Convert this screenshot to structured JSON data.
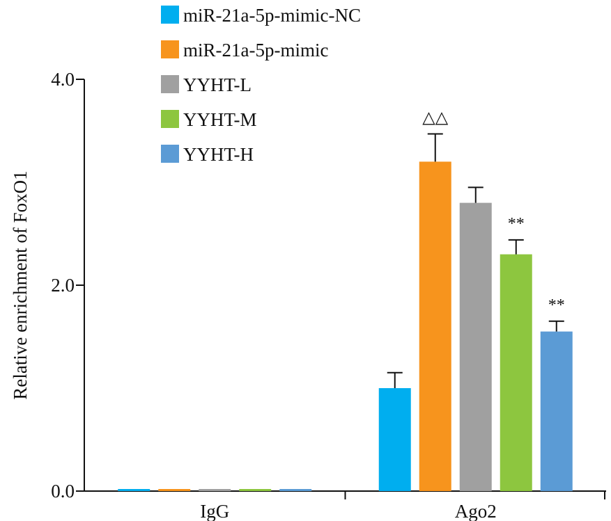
{
  "chart_data": {
    "type": "bar",
    "categories": [
      "IgG",
      "Ago2"
    ],
    "ylabel": "Relative enrichment of FoxO1",
    "ylim": [
      0,
      4.0
    ],
    "yticks": [
      0.0,
      2.0,
      4.0
    ],
    "ytick_labels": [
      "0.0",
      "2.0",
      "4.0"
    ],
    "series": [
      {
        "name": "miR-21a-5p-mimic-NC",
        "color": "#00aeef",
        "values": [
          0.02,
          1.0
        ],
        "errors": [
          0,
          0.15
        ]
      },
      {
        "name": "miR-21a-5p-mimic",
        "color": "#f7941d",
        "values": [
          0.02,
          3.2
        ],
        "errors": [
          0,
          0.27
        ]
      },
      {
        "name": "YYHT-L",
        "color": "#a0a0a0",
        "values": [
          0.02,
          2.8
        ],
        "errors": [
          0,
          0.15
        ]
      },
      {
        "name": "YYHT-M",
        "color": "#8dc63f",
        "values": [
          0.02,
          2.3
        ],
        "errors": [
          0,
          0.14
        ]
      },
      {
        "name": "YYHT-H",
        "color": "#5b9bd5",
        "values": [
          0.02,
          1.55
        ],
        "errors": [
          0,
          0.1
        ]
      }
    ],
    "annotations": [
      {
        "category": "Ago2",
        "series": "miR-21a-5p-mimic",
        "text": "△△"
      },
      {
        "category": "Ago2",
        "series": "YYHT-M",
        "text": "**"
      },
      {
        "category": "Ago2",
        "series": "YYHT-H",
        "text": "**"
      }
    ],
    "legend_position": "top-left",
    "grid": false
  }
}
